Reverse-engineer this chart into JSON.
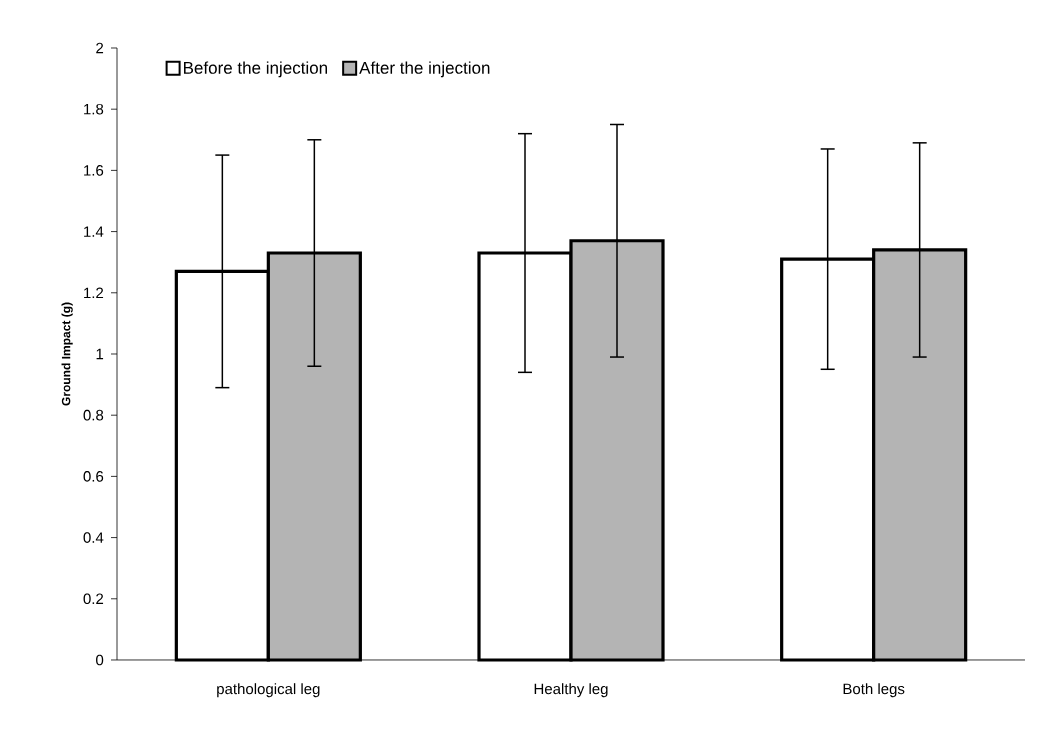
{
  "chart_data": {
    "type": "bar",
    "ylabel": "Ground Impact (g)",
    "categories": [
      "pathological leg",
      "Healthy leg",
      "Both legs"
    ],
    "series": [
      {
        "name": "Before the injection",
        "color": "#ffffff",
        "values": [
          1.27,
          1.33,
          1.31
        ],
        "errors": [
          0.38,
          0.39,
          0.36
        ]
      },
      {
        "name": "After the injection",
        "color": "#b4b4b4",
        "values": [
          1.33,
          1.37,
          1.34
        ],
        "errors": [
          0.37,
          0.38,
          0.35
        ]
      }
    ],
    "ylim": [
      0,
      2
    ],
    "yticks": [
      0,
      0.2,
      0.4,
      0.6,
      0.8,
      1,
      1.2,
      1.4,
      1.6,
      1.8,
      2
    ],
    "grid": false,
    "legend": "top left"
  }
}
